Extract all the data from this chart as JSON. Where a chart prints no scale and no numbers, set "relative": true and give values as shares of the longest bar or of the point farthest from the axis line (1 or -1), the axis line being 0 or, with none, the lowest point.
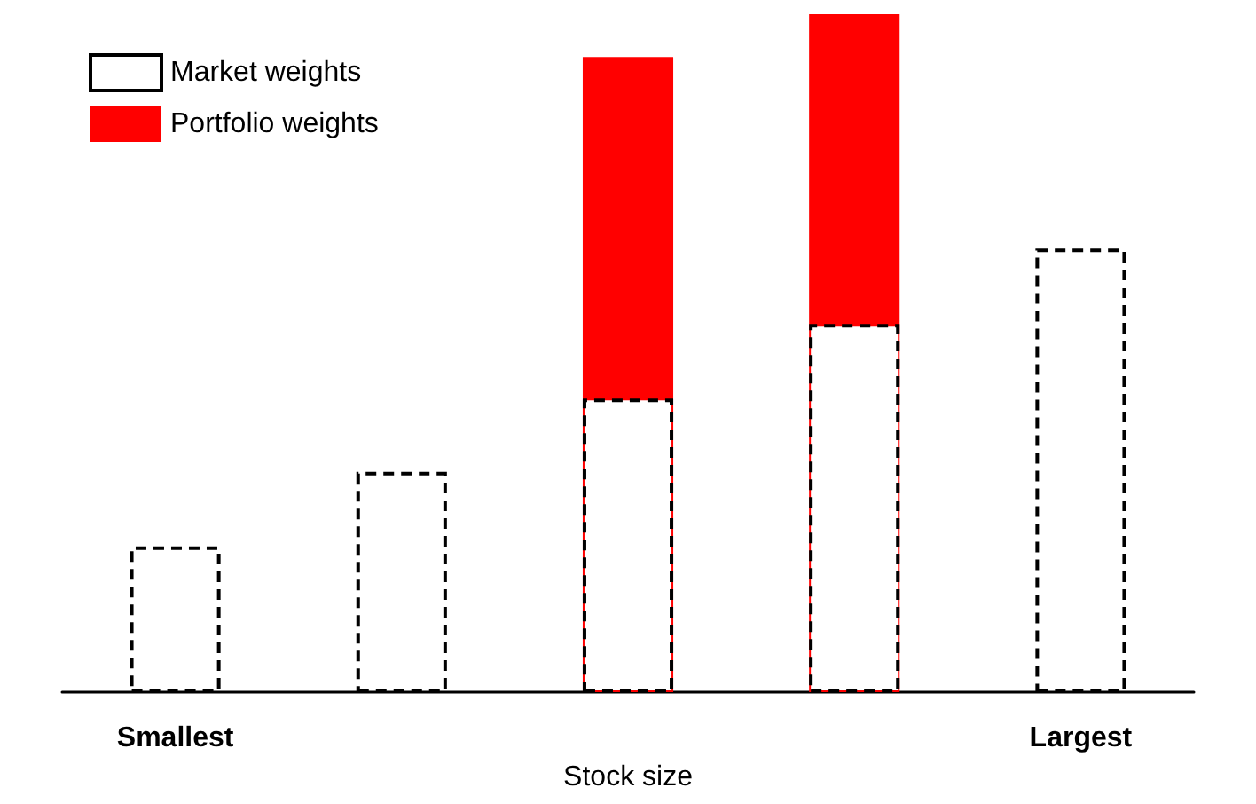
{
  "chart_data": {
    "type": "bar",
    "relative": true,
    "xlabel": "Stock size",
    "categories": [
      "Smallest",
      null,
      null,
      null,
      "Largest"
    ],
    "series": [
      {
        "name": "Portfolio weights",
        "color": "#ff0000",
        "values": [
          null,
          null,
          0.937,
          1,
          null
        ]
      },
      {
        "name": "Market weights",
        "color": "#000000",
        "line_style": "dashed",
        "values": [
          0.215,
          0.325,
          0.433,
          0.543,
          0.654
        ]
      }
    ],
    "legend": "top left",
    "tick_labels": "x"
  }
}
